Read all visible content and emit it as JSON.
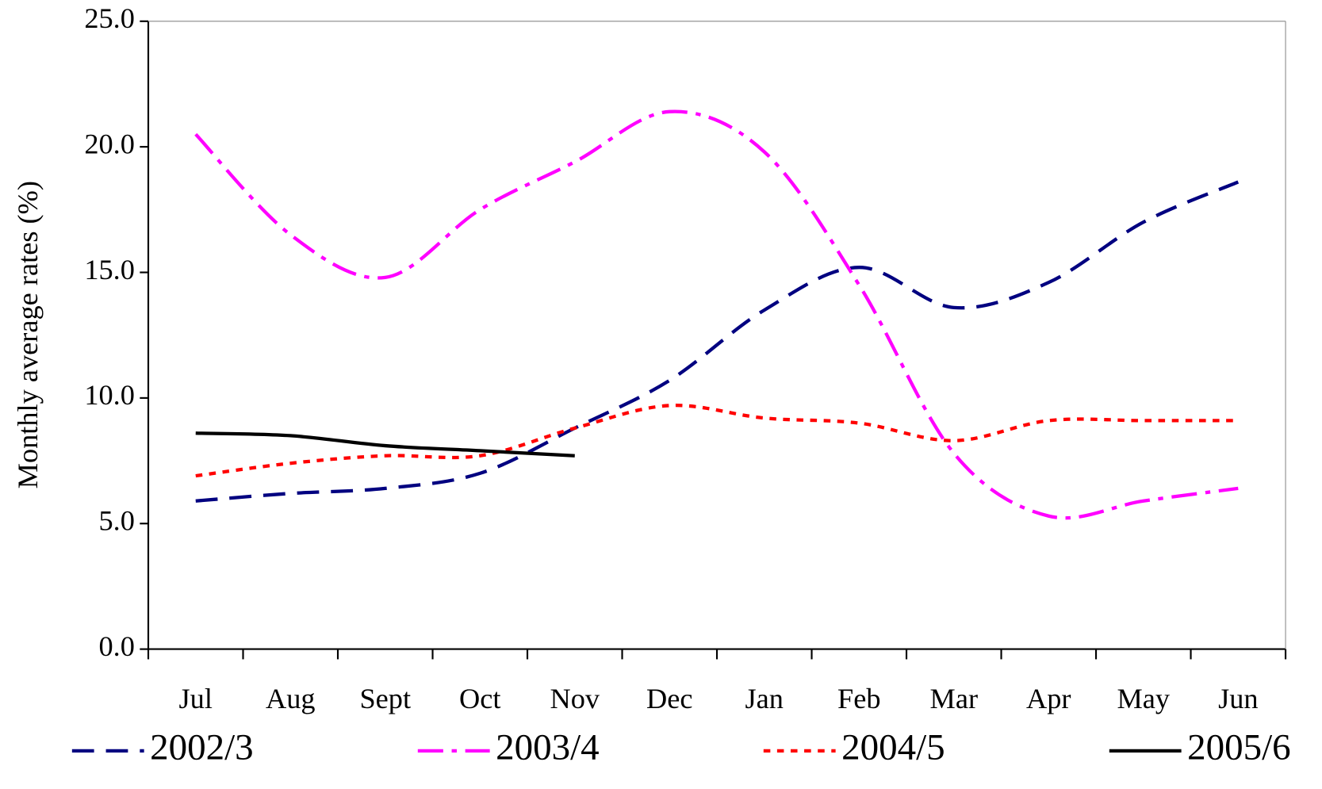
{
  "chart_data": {
    "type": "line",
    "y_label": "Monthly average rates (%)",
    "categories": [
      "Jul",
      "Aug",
      "Sept",
      "Oct",
      "Nov",
      "Dec",
      "Jan",
      "Feb",
      "Mar",
      "Apr",
      "May",
      "Jun"
    ],
    "ylim": [
      0,
      25
    ],
    "yticks": [
      {
        "value": 0,
        "label": "0.0"
      },
      {
        "value": 5,
        "label": "5.0"
      },
      {
        "value": 10,
        "label": "10.0"
      },
      {
        "value": 15,
        "label": "15.0"
      },
      {
        "value": 20,
        "label": "20.0"
      },
      {
        "value": 25,
        "label": "25.0"
      }
    ],
    "legend": "bottom",
    "series": [
      {
        "name": "2002/3",
        "color": "#000080",
        "style": "dashed",
        "values": [
          5.9,
          6.2,
          6.4,
          7.0,
          8.8,
          10.7,
          13.5,
          15.2,
          13.6,
          14.6,
          17.0,
          18.6
        ]
      },
      {
        "name": "2003/4",
        "color": "#ff00ff",
        "style": "dash-dot",
        "values": [
          20.5,
          16.5,
          14.8,
          17.5,
          19.4,
          21.4,
          19.8,
          14.5,
          7.8,
          5.3,
          5.9,
          6.4
        ]
      },
      {
        "name": "2004/5",
        "color": "#ff0000",
        "style": "dotted",
        "values": [
          6.9,
          7.4,
          7.7,
          7.7,
          8.8,
          9.7,
          9.2,
          9.0,
          8.3,
          9.1,
          9.1,
          9.1
        ]
      },
      {
        "name": "2005/6",
        "color": "#000000",
        "style": "solid",
        "values": [
          8.6,
          8.5,
          8.1,
          7.9,
          7.7,
          null,
          null,
          null,
          null,
          null,
          null,
          null
        ]
      }
    ]
  }
}
